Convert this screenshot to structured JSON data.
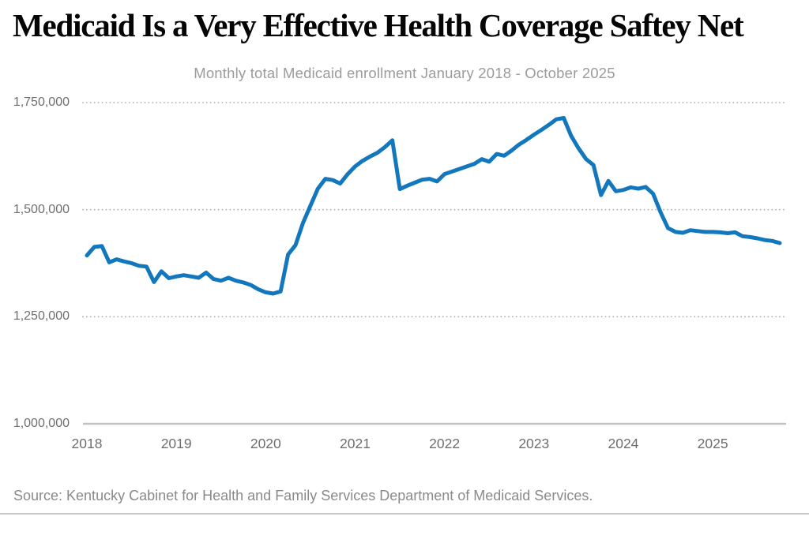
{
  "colors": {
    "line": "#1277bd",
    "grid_dots": "#b0b0b0",
    "axis_line": "#c2c2c2",
    "tick_text": "#6e6e6e",
    "title_text": "#050505",
    "subtitle_text": "#9b9b9b",
    "source_text": "#8a8a8a",
    "divider": "#c9c9c9"
  },
  "chart_data": {
    "type": "line",
    "title": "Medicaid Is a Very Effective Health Coverage Saftey Net",
    "subtitle": "Monthly total Medicaid enrollment January 2018 - October 2025",
    "source": "Source: Kentucky Cabinet for Health and Family Services Department of Medicaid Services.",
    "frequency": "monthly",
    "x_start": "2018-01",
    "x_end": "2025-10",
    "x_tick_labels": [
      "2018",
      "2019",
      "2020",
      "2021",
      "2022",
      "2023",
      "2024",
      "2025"
    ],
    "x_tick_month_indices": [
      0,
      12,
      24,
      36,
      48,
      60,
      72,
      84
    ],
    "y_ticks": [
      1000000,
      1250000,
      1500000,
      1750000
    ],
    "y_tick_labels": [
      "1,000,000",
      "1,250,000",
      "1,500,000",
      "1,750,000"
    ],
    "ylim": [
      1000000,
      1800000
    ],
    "grid": "dotted-horizontal",
    "legend": "none",
    "series": [
      {
        "name": "Total Medicaid enrollment",
        "values": [
          1393000,
          1413000,
          1415000,
          1377000,
          1384000,
          1379000,
          1375000,
          1369000,
          1367000,
          1331000,
          1356000,
          1340000,
          1344000,
          1347000,
          1344000,
          1341000,
          1353000,
          1338000,
          1334000,
          1341000,
          1334000,
          1330000,
          1324000,
          1314000,
          1307000,
          1304000,
          1309000,
          1395000,
          1417000,
          1469000,
          1509000,
          1549000,
          1572000,
          1569000,
          1561000,
          1583000,
          1601000,
          1614000,
          1624000,
          1633000,
          1646000,
          1662000,
          1548000,
          1556000,
          1563000,
          1570000,
          1572000,
          1566000,
          1583000,
          1589000,
          1595000,
          1601000,
          1607000,
          1618000,
          1612000,
          1630000,
          1626000,
          1638000,
          1652000,
          1663000,
          1675000,
          1686000,
          1698000,
          1711000,
          1714000,
          1672000,
          1643000,
          1618000,
          1604000,
          1534000,
          1567000,
          1543000,
          1546000,
          1552000,
          1549000,
          1553000,
          1537000,
          1494000,
          1457000,
          1448000,
          1446000,
          1452000,
          1450000,
          1448000,
          1448000,
          1447000,
          1445000,
          1447000,
          1438000,
          1436000,
          1433000,
          1429000,
          1427000,
          1422000
        ]
      }
    ]
  }
}
